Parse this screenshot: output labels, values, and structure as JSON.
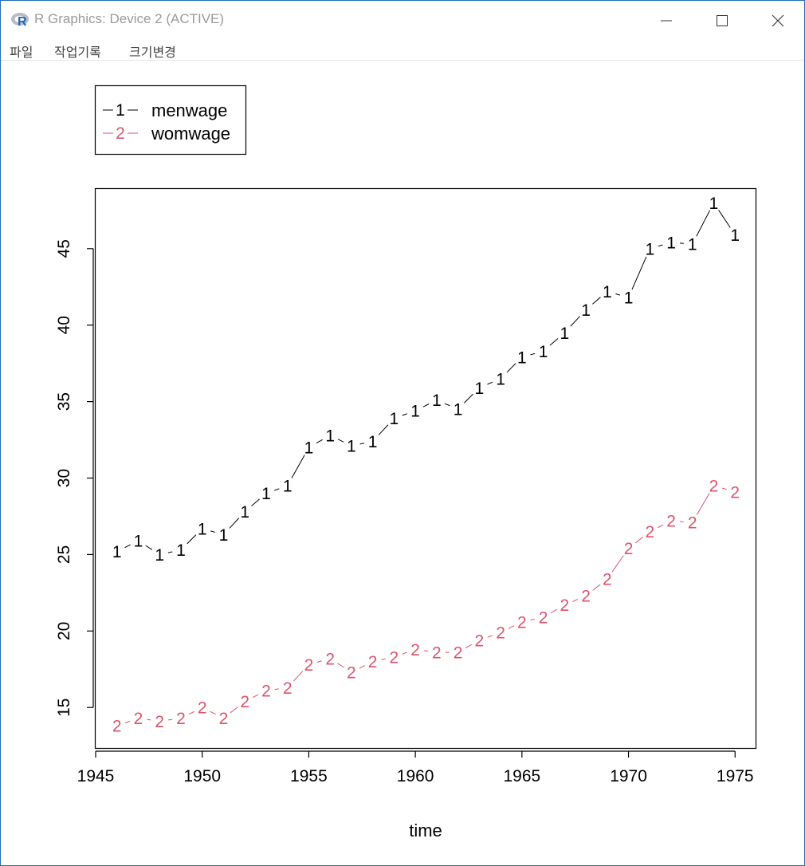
{
  "window": {
    "title": "R Graphics: Device 2 (ACTIVE)",
    "icon": "r-logo-icon",
    "controls": [
      "minimize-icon",
      "maximize-icon",
      "close-icon"
    ]
  },
  "menu": {
    "file": "파일",
    "history": "작업기록",
    "resize": "크기변경"
  },
  "colors": {
    "series1": "#000000",
    "series2": "#DF536B",
    "window_border": "#1e6fb8"
  },
  "chart_data": {
    "type": "line",
    "line_style": "b",
    "xlabel": "time",
    "ylabel": "",
    "title": "",
    "xlim": [
      1945,
      1976
    ],
    "ylim": [
      12.3,
      48.9
    ],
    "xticks": [
      1945,
      1950,
      1955,
      1960,
      1965,
      1970,
      1975
    ],
    "yticks": [
      15,
      20,
      25,
      30,
      35,
      40,
      45
    ],
    "legend_position": "top-left",
    "x": [
      1946,
      1947,
      1948,
      1949,
      1950,
      1951,
      1952,
      1953,
      1954,
      1955,
      1956,
      1957,
      1958,
      1959,
      1960,
      1961,
      1962,
      1963,
      1964,
      1965,
      1966,
      1967,
      1968,
      1969,
      1970,
      1971,
      1972,
      1973,
      1974,
      1975
    ],
    "series": [
      {
        "name": "menwage",
        "symbol": "1",
        "values": [
          25.2,
          25.9,
          25.0,
          25.3,
          26.7,
          26.3,
          27.8,
          29.0,
          29.5,
          32.0,
          32.8,
          32.1,
          32.4,
          33.9,
          34.4,
          35.1,
          34.5,
          35.9,
          36.5,
          37.9,
          38.3,
          39.5,
          41.0,
          42.2,
          41.8,
          45.0,
          45.4,
          45.3,
          48.0,
          45.9
        ]
      },
      {
        "name": "womwage",
        "symbol": "2",
        "values": [
          13.8,
          14.3,
          14.1,
          14.3,
          15.0,
          14.3,
          15.4,
          16.1,
          16.3,
          17.8,
          18.2,
          17.3,
          18.0,
          18.3,
          18.8,
          18.6,
          18.6,
          19.4,
          19.9,
          20.6,
          20.9,
          21.7,
          22.3,
          23.4,
          25.4,
          26.5,
          27.2,
          27.1,
          29.5,
          29.1
        ]
      }
    ]
  }
}
